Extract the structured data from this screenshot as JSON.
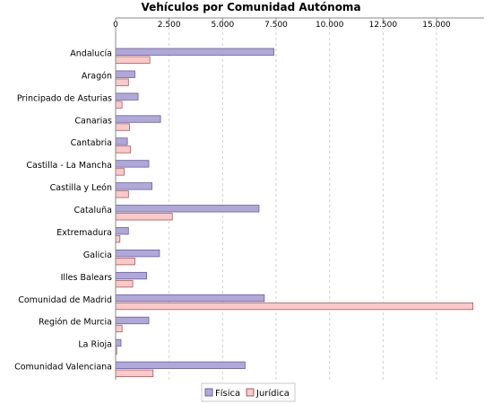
{
  "chart_data": {
    "type": "bar",
    "orientation": "horizontal",
    "title": "Vehículos por Comunidad Autónoma",
    "xlabel": "",
    "ylabel": "",
    "xlim": [
      0,
      16800
    ],
    "x_ticks": [
      0,
      2500,
      5000,
      7500,
      10000,
      12500,
      15000
    ],
    "x_tick_labels": [
      "0",
      "2.500",
      "5.000",
      "7.500",
      "10.000",
      "12.500",
      "15.000"
    ],
    "axis_position": "top",
    "grid": true,
    "legend_position": "bottom",
    "categories": [
      "Andalucía",
      "Aragón",
      "Principado de Asturias",
      "Canarias",
      "Cantabria",
      "Castilla - La Mancha",
      "Castilla y León",
      "Cataluña",
      "Extremadura",
      "Galicia",
      "Illes Balears",
      "Comunidad de Madrid",
      "Región de Murcia",
      "La Rioja",
      "Comunidad Valenciana"
    ],
    "series": [
      {
        "name": "Física",
        "color": "#b0a8d8",
        "stroke": "#6b5f9e",
        "values": [
          7400,
          900,
          1050,
          2100,
          550,
          1550,
          1700,
          6700,
          600,
          2050,
          1450,
          6950,
          1550,
          250,
          6050
        ]
      },
      {
        "name": "Jurídica",
        "color": "#fcc8c8",
        "stroke": "#a06060",
        "values": [
          1600,
          600,
          300,
          650,
          700,
          400,
          600,
          2650,
          200,
          900,
          800,
          16700,
          300,
          50,
          1750
        ]
      }
    ]
  }
}
